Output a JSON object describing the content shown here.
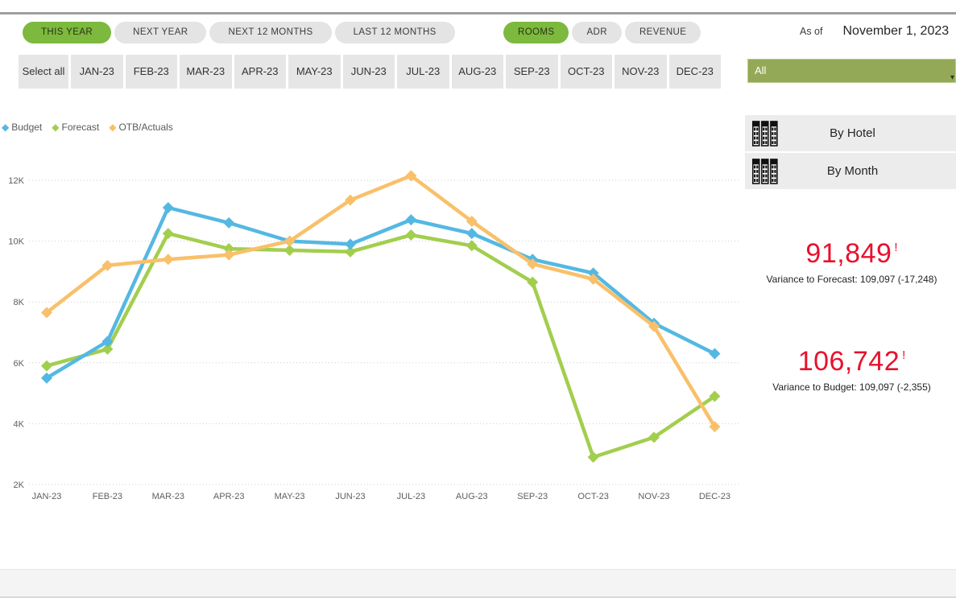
{
  "header": {
    "period_tabs": [
      {
        "label": "THIS YEAR",
        "selected": true
      },
      {
        "label": "NEXT YEAR",
        "selected": false
      },
      {
        "label": "NEXT 12 MONTHS",
        "selected": false
      },
      {
        "label": "LAST 12 MONTHS",
        "selected": false
      }
    ],
    "metric_tabs": [
      {
        "label": "ROOMS",
        "selected": true
      },
      {
        "label": "ADR",
        "selected": false
      },
      {
        "label": "REVENUE",
        "selected": false
      }
    ],
    "as_of_label": "As of",
    "as_of_date": "November 1, 2023"
  },
  "month_filter": {
    "select_all_label": "Select all",
    "months": [
      "JAN-23",
      "FEB-23",
      "MAR-23",
      "APR-23",
      "MAY-23",
      "JUN-23",
      "JUL-23",
      "AUG-23",
      "SEP-23",
      "OCT-23",
      "NOV-23",
      "DEC-23"
    ]
  },
  "hotel_filter": {
    "value": "All",
    "caret_icon": "▾"
  },
  "side_buttons": [
    {
      "label": "By Hotel"
    },
    {
      "label": "By Month"
    }
  ],
  "chart_data": {
    "type": "line",
    "x": [
      "JAN-23",
      "FEB-23",
      "MAR-23",
      "APR-23",
      "MAY-23",
      "JUN-23",
      "JUL-23",
      "AUG-23",
      "SEP-23",
      "OCT-23",
      "NOV-23",
      "DEC-23"
    ],
    "series": [
      {
        "name": "Budget",
        "color": "#54B8E3",
        "values": [
          5500,
          6700,
          11100,
          10600,
          10000,
          9900,
          10700,
          10250,
          9400,
          8950,
          7300,
          6300
        ]
      },
      {
        "name": "Forecast",
        "color": "#A2CE4E",
        "values": [
          5900,
          6450,
          10250,
          9750,
          9700,
          9650,
          10200,
          9850,
          8650,
          2900,
          3550,
          4900
        ]
      },
      {
        "name": "OTB/Actuals",
        "color": "#F9C06A",
        "values": [
          7650,
          9200,
          9400,
          9550,
          10000,
          11350,
          12150,
          10650,
          9250,
          8750,
          7200,
          3900
        ]
      }
    ],
    "ylim": [
      2000,
      12000
    ],
    "yticks": [
      "2K",
      "4K",
      "6K",
      "8K",
      "10K",
      "12K"
    ],
    "grid": true,
    "legend_position": "top-left",
    "marker": "diamond"
  },
  "kpis": [
    {
      "value": "91,849",
      "alert": "!",
      "subtext": "Variance to Forecast: 109,097 (-17,248)"
    },
    {
      "value": "106,742",
      "alert": "!",
      "subtext": "Variance to Budget: 109,097 (-2,355)"
    }
  ],
  "colors": {
    "selected_green": "#7CB93E",
    "dropdown_olive": "#94A957",
    "kpi_red": "#E8112D",
    "button_gray": "#E6E6E6",
    "axis_text": "#605E5C",
    "gridline": "#CFCFCF"
  }
}
